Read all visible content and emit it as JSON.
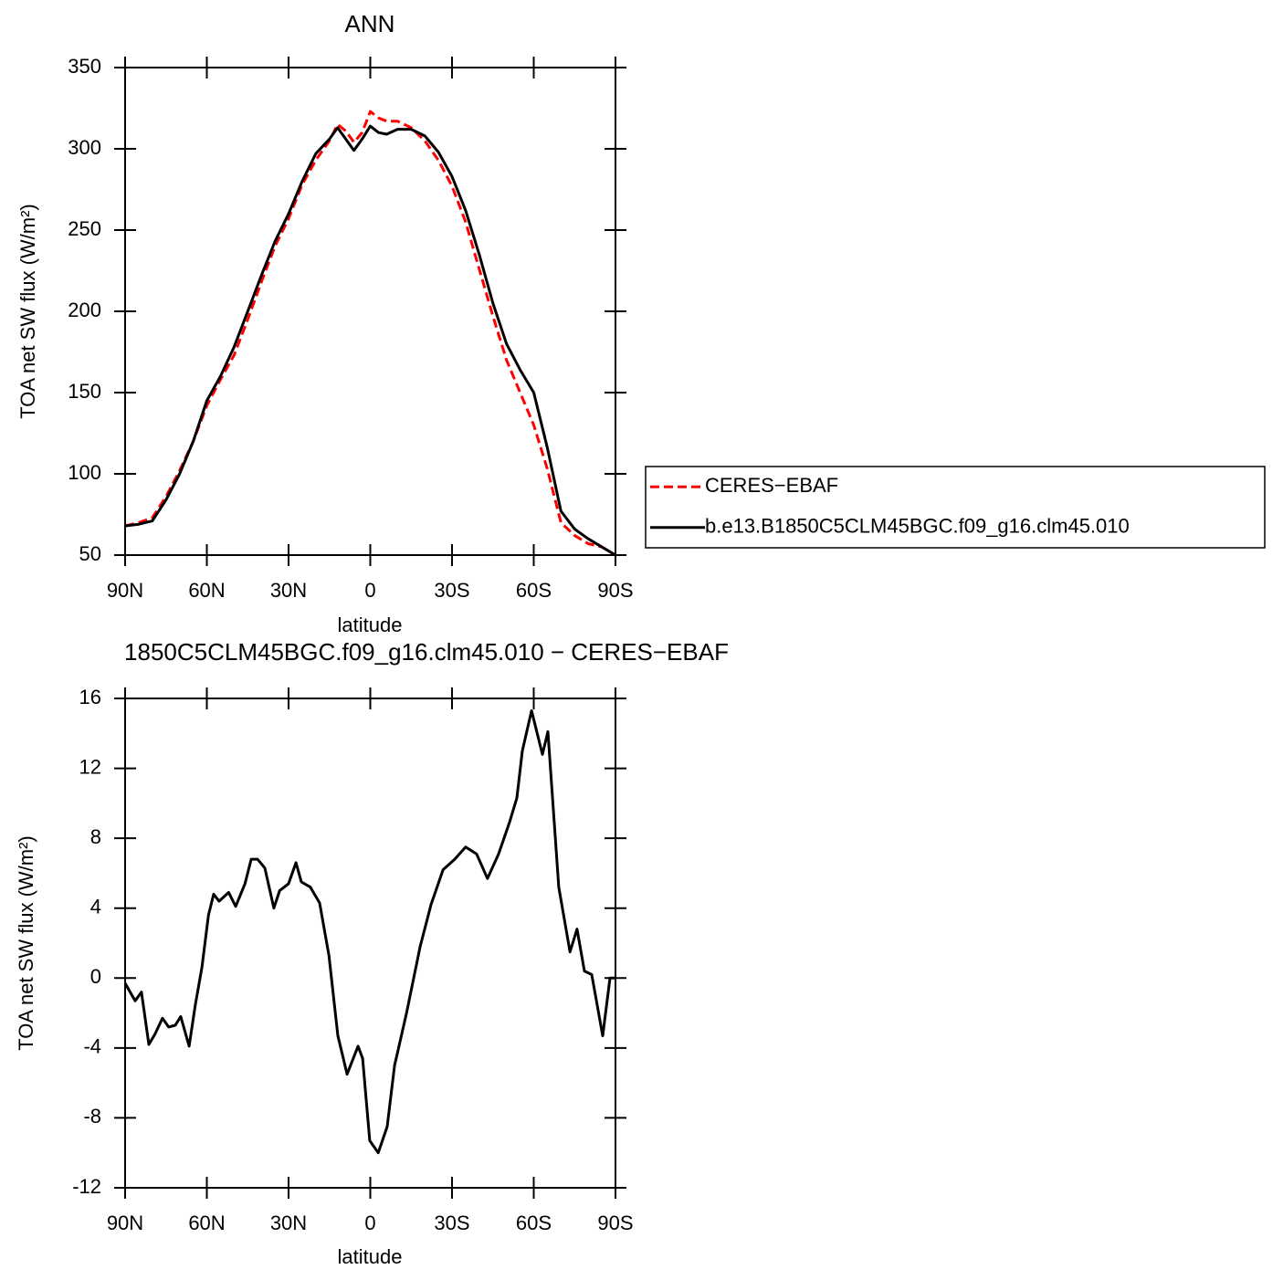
{
  "charts": [
    {
      "type": "line",
      "title": "ANN",
      "xlabel": "latitude",
      "ylabel": "TOA net SW flux (W/m²)",
      "x": [
        90,
        85,
        80,
        75,
        70,
        65,
        60,
        55,
        50,
        45,
        40,
        35,
        30,
        25,
        20,
        15,
        12,
        9,
        6,
        3,
        0,
        -3,
        -6,
        -10,
        -15,
        -20,
        -25,
        -30,
        -35,
        -40,
        -45,
        -50,
        -55,
        -60,
        -65,
        -70,
        -75,
        -80,
        -85,
        -90
      ],
      "series": [
        {
          "name": "CERES−EBAF",
          "color": "#ff0000",
          "style": "dashed",
          "values": [
            68,
            70,
            73,
            86,
            102,
            120,
            142,
            158,
            173,
            195,
            218,
            240,
            257,
            278,
            293,
            305,
            315,
            311,
            304,
            310,
            323,
            319,
            317,
            317,
            313,
            305,
            293,
            277,
            255,
            226,
            197,
            170,
            150,
            130,
            103,
            70,
            62,
            57,
            55,
            50
          ]
        },
        {
          "name": "b.e13.B1850C5CLM45BGC.f09_g16.clm45.010",
          "color": "#000000",
          "style": "solid",
          "values": [
            68,
            69,
            71,
            84,
            100,
            120,
            145,
            160,
            178,
            200,
            222,
            243,
            260,
            280,
            297,
            306,
            313,
            306,
            299,
            306,
            314,
            310,
            309,
            312,
            312,
            308,
            298,
            283,
            262,
            235,
            205,
            180,
            164,
            150,
            116,
            77,
            66,
            60,
            55,
            50
          ]
        }
      ],
      "xlim": [
        90,
        -90
      ],
      "xticks": [
        {
          "value": 90,
          "label": "90N"
        },
        {
          "value": 60,
          "label": "60N"
        },
        {
          "value": 30,
          "label": "30N"
        },
        0,
        {
          "value": -30,
          "label": "30S"
        },
        {
          "value": -60,
          "label": "60S"
        },
        {
          "value": -90,
          "label": "90S"
        }
      ],
      "ylim": [
        50,
        350
      ],
      "yticks": [
        50,
        100,
        150,
        200,
        250,
        300,
        350
      ],
      "legend": "right"
    },
    {
      "type": "line",
      "title": "1850C5CLM45BGC.f09_g16.clm45.010 − CERES−EBAF",
      "xlabel": "latitude",
      "ylabel": "TOA net SW flux (W/m²)",
      "x": [
        90,
        86.3,
        84,
        81.3,
        79,
        76.3,
        74,
        71.6,
        69.6,
        66.5,
        64.2,
        61.8,
        59.4,
        57.5,
        55.5,
        52,
        49.4,
        46,
        43.7,
        41.4,
        38.7,
        35.4,
        33.3,
        30,
        27.3,
        25.3,
        22,
        18.6,
        15.2,
        11.9,
        8.5,
        4.5,
        2.8,
        0.2,
        -2.9,
        -6.2,
        -8.9,
        -13.3,
        -18.3,
        -22.3,
        -26.7,
        -31,
        -35,
        -39,
        -43,
        -47.1,
        -51.1,
        -53.8,
        -55.8,
        -59.2,
        -63.2,
        -65.2,
        -69.2,
        -73.3,
        -75.9,
        -78.6,
        -81.3,
        -85.3,
        -88,
        -90
      ],
      "series": [
        {
          "color": "#000000",
          "style": "solid",
          "values": [
            -0.3,
            -1.3,
            -0.8,
            -3.8,
            -3.2,
            -2.3,
            -2.8,
            -2.7,
            -2.2,
            -3.9,
            -1.5,
            0.6,
            3.6,
            4.8,
            4.4,
            4.9,
            4.1,
            5.4,
            6.8,
            6.8,
            6.3,
            4,
            5,
            5.4,
            6.6,
            5.5,
            5.2,
            4.3,
            1.3,
            -3.3,
            -5.5,
            -3.9,
            -4.6,
            -9.3,
            -10,
            -8.5,
            -5,
            -2,
            1.8,
            4.2,
            6.2,
            6.8,
            7.5,
            7.1,
            5.7,
            7.1,
            8.9,
            10.3,
            13,
            15.3,
            12.8,
            14.1,
            5.2,
            1.5,
            2.8,
            0.4,
            0.2,
            -3.3,
            0,
            0
          ]
        }
      ],
      "xlim": [
        90,
        -90
      ],
      "xticks": [
        {
          "value": 90,
          "label": "90N"
        },
        {
          "value": 60,
          "label": "60N"
        },
        {
          "value": 30,
          "label": "30N"
        },
        0,
        {
          "value": -30,
          "label": "30S"
        },
        {
          "value": -60,
          "label": "60S"
        },
        {
          "value": -90,
          "label": "90S"
        }
      ],
      "ylim": [
        -12,
        16
      ],
      "yticks": [
        -12,
        -8,
        -4,
        0,
        4,
        8,
        12,
        16
      ]
    }
  ]
}
